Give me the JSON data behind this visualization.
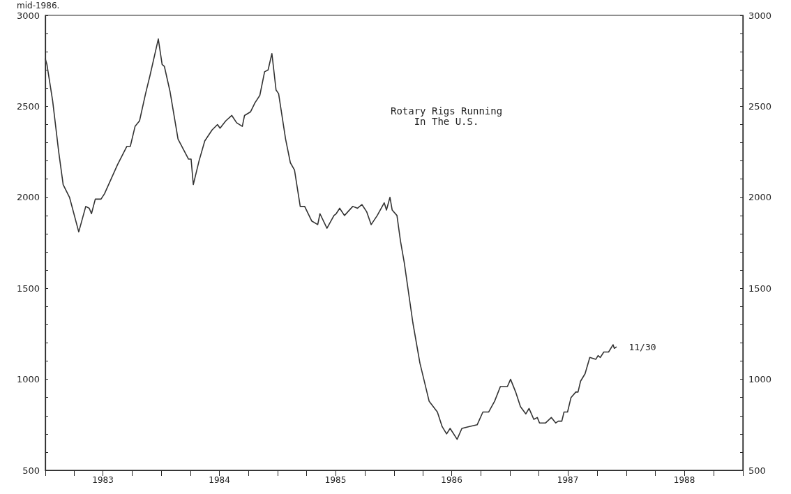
{
  "chart_data": {
    "type": "line",
    "title": "Rotary Rigs Running\nIn The U.S.",
    "annotations": [
      "mid-1986.",
      {
        "text": "11/30",
        "x": "1987-11-30",
        "y": 1177
      }
    ],
    "x": [
      "1983-01-01",
      "1983-01-06",
      "1983-01-24",
      "1983-02-12",
      "1983-02-26",
      "1983-03-18",
      "1983-04-16",
      "1983-05-08",
      "1983-05-19",
      "1983-05-26",
      "1983-06-07",
      "1983-06-25",
      "1983-07-06",
      "1983-08-16",
      "1983-09-14",
      "1983-09-25",
      "1983-10-10",
      "1983-10-24",
      "1983-11-12",
      "1983-11-26",
      "1983-12-22",
      "1984-01-03",
      "1984-01-10",
      "1984-01-28",
      "1984-02-22",
      "1984-03-26",
      "1984-04-03",
      "1984-04-10",
      "1984-04-28",
      "1984-05-16",
      "1984-06-08",
      "1984-06-25",
      "1984-07-03",
      "1984-07-21",
      "1984-08-09",
      "1984-08-24",
      "1984-09-11",
      "1984-09-18",
      "1984-10-07",
      "1984-10-21",
      "1984-11-05",
      "1984-11-20",
      "1984-12-01",
      "1984-12-13",
      "1984-12-26",
      "1985-01-03",
      "1985-01-25",
      "1985-02-09",
      "1985-02-22",
      "1985-03-12",
      "1985-03-26",
      "1985-04-17",
      "1985-05-06",
      "1985-05-13",
      "1985-06-04",
      "1985-06-26",
      "1985-07-03",
      "1985-07-14",
      "1985-07-29",
      "1985-08-24",
      "1985-09-08",
      "1985-09-22",
      "1985-10-07",
      "1985-10-21",
      "1985-11-09",
      "1985-12-01",
      "1985-12-08",
      "1985-12-19",
      "1985-12-26",
      "1986-01-10",
      "1986-01-21",
      "1986-02-02",
      "1986-03-01",
      "1986-03-23",
      "1986-04-21",
      "1986-05-17",
      "1986-06-01",
      "1986-06-15",
      "1986-06-26",
      "1986-07-18",
      "1986-08-02",
      "1986-08-24",
      "1986-09-19",
      "1986-10-07",
      "1986-10-25",
      "1986-11-13",
      "1986-12-01",
      "1986-12-23",
      "1987-01-02",
      "1987-01-18",
      "1987-02-02",
      "1987-02-19",
      "1987-03-01",
      "1987-03-16",
      "1987-03-27",
      "1987-04-03",
      "1987-04-22",
      "1987-05-10",
      "1987-05-24",
      "1987-06-01",
      "1987-06-12",
      "1987-06-19",
      "1987-06-30",
      "1987-07-11",
      "1987-07-26",
      "1987-08-02",
      "1987-08-10",
      "1987-08-24",
      "1987-09-08",
      "1987-09-27",
      "1987-10-04",
      "1987-10-11",
      "1987-10-22",
      "1987-11-06",
      "1987-11-20",
      "1987-11-24",
      "1987-11-30"
    ],
    "series": [
      {
        "color": "#333333",
        "values": [
          2760,
          2730,
          2530,
          2250,
          2070,
          2000,
          1810,
          1950,
          1940,
          1910,
          1990,
          1990,
          2020,
          2180,
          2280,
          2280,
          2390,
          2420,
          2570,
          2670,
          2870,
          2730,
          2720,
          2580,
          2320,
          2210,
          2210,
          2070,
          2200,
          2310,
          2370,
          2400,
          2380,
          2420,
          2450,
          2410,
          2390,
          2450,
          2470,
          2520,
          2560,
          2690,
          2700,
          2790,
          2590,
          2570,
          2320,
          2190,
          2150,
          1950,
          1950,
          1870,
          1850,
          1910,
          1830,
          1900,
          1910,
          1940,
          1900,
          1950,
          1940,
          1960,
          1920,
          1850,
          1900,
          1970,
          1930,
          2000,
          1930,
          1900,
          1760,
          1640,
          1310,
          1090,
          880,
          820,
          740,
          700,
          730,
          670,
          730,
          740,
          750,
          820,
          820,
          880,
          960,
          960,
          1000,
          930,
          850,
          810,
          840,
          780,
          790,
          760,
          760,
          790,
          760,
          770,
          770,
          820,
          820,
          900,
          930,
          930,
          990,
          1030,
          1120,
          1110,
          1130,
          1120,
          1150,
          1150,
          1190,
          1170,
          1177
        ]
      }
    ],
    "xlim": [
      "1983-01-01",
      "1989-01-01"
    ],
    "xticks": [
      {
        "value": "1983-01-01",
        "label": null
      },
      {
        "value": "1983-04-01",
        "label": null
      },
      {
        "value": "1983-07-01",
        "label": "1983"
      },
      {
        "value": "1983-10-01",
        "label": null
      },
      {
        "value": "1984-01-01",
        "label": null
      },
      {
        "value": "1984-04-01",
        "label": null
      },
      {
        "value": "1984-07-01",
        "label": "1984"
      },
      {
        "value": "1984-10-01",
        "label": null
      },
      {
        "value": "1985-01-01",
        "label": null
      },
      {
        "value": "1985-04-01",
        "label": null
      },
      {
        "value": "1985-07-01",
        "label": "1985"
      },
      {
        "value": "1985-10-01",
        "label": null
      },
      {
        "value": "1986-01-01",
        "label": null
      },
      {
        "value": "1986-04-01",
        "label": null
      },
      {
        "value": "1986-07-01",
        "label": "1986"
      },
      {
        "value": "1986-10-01",
        "label": null
      },
      {
        "value": "1987-01-01",
        "label": null
      },
      {
        "value": "1987-04-01",
        "label": null
      },
      {
        "value": "1987-07-01",
        "label": "1987"
      },
      {
        "value": "1987-10-01",
        "label": null
      },
      {
        "value": "1988-01-01",
        "label": null
      },
      {
        "value": "1988-04-01",
        "label": null
      },
      {
        "value": "1988-07-01",
        "label": "1988"
      },
      {
        "value": "1988-10-01",
        "label": null
      },
      {
        "value": "1989-01-01",
        "label": null
      }
    ],
    "ylim": [
      500,
      3000
    ],
    "yticks": [
      500,
      {
        "value": 600,
        "label": null
      },
      {
        "value": 700,
        "label": null
      },
      {
        "value": 800,
        "label": null
      },
      {
        "value": 900,
        "label": null
      },
      1000,
      {
        "value": 1100,
        "label": null
      },
      {
        "value": 1200,
        "label": null
      },
      {
        "value": 1300,
        "label": null
      },
      {
        "value": 1400,
        "label": null
      },
      1500,
      {
        "value": 1600,
        "label": null
      },
      {
        "value": 1700,
        "label": null
      },
      {
        "value": 1800,
        "label": null
      },
      {
        "value": 1900,
        "label": null
      },
      2000,
      {
        "value": 2100,
        "label": null
      },
      {
        "value": 2200,
        "label": null
      },
      {
        "value": 2300,
        "label": null
      },
      {
        "value": 2400,
        "label": null
      },
      2500,
      {
        "value": 2600,
        "label": null
      },
      {
        "value": 2700,
        "label": null
      },
      {
        "value": 2800,
        "label": null
      },
      {
        "value": 2900,
        "label": null
      },
      3000
    ],
    "y2lim": [
      500,
      3000
    ],
    "y2ticks": [
      500,
      {
        "value": 600,
        "label": null
      },
      {
        "value": 700,
        "label": null
      },
      {
        "value": 800,
        "label": null
      },
      {
        "value": 900,
        "label": null
      },
      1000,
      {
        "value": 1100,
        "label": null
      },
      {
        "value": 1200,
        "label": null
      },
      {
        "value": 1300,
        "label": null
      },
      {
        "value": 1400,
        "label": null
      },
      1500,
      {
        "value": 1600,
        "label": null
      },
      {
        "value": 1700,
        "label": null
      },
      {
        "value": 1800,
        "label": null
      },
      {
        "value": 1900,
        "label": null
      },
      2000,
      {
        "value": 2100,
        "label": null
      },
      {
        "value": 2200,
        "label": null
      },
      {
        "value": 2300,
        "label": null
      },
      {
        "value": 2400,
        "label": null
      },
      2500,
      {
        "value": 2600,
        "label": null
      },
      {
        "value": 2700,
        "label": null
      },
      {
        "value": 2800,
        "label": null
      },
      {
        "value": 2900,
        "label": null
      },
      3000
    ],
    "grid": false,
    "marker": "none",
    "line_style": "solid"
  }
}
